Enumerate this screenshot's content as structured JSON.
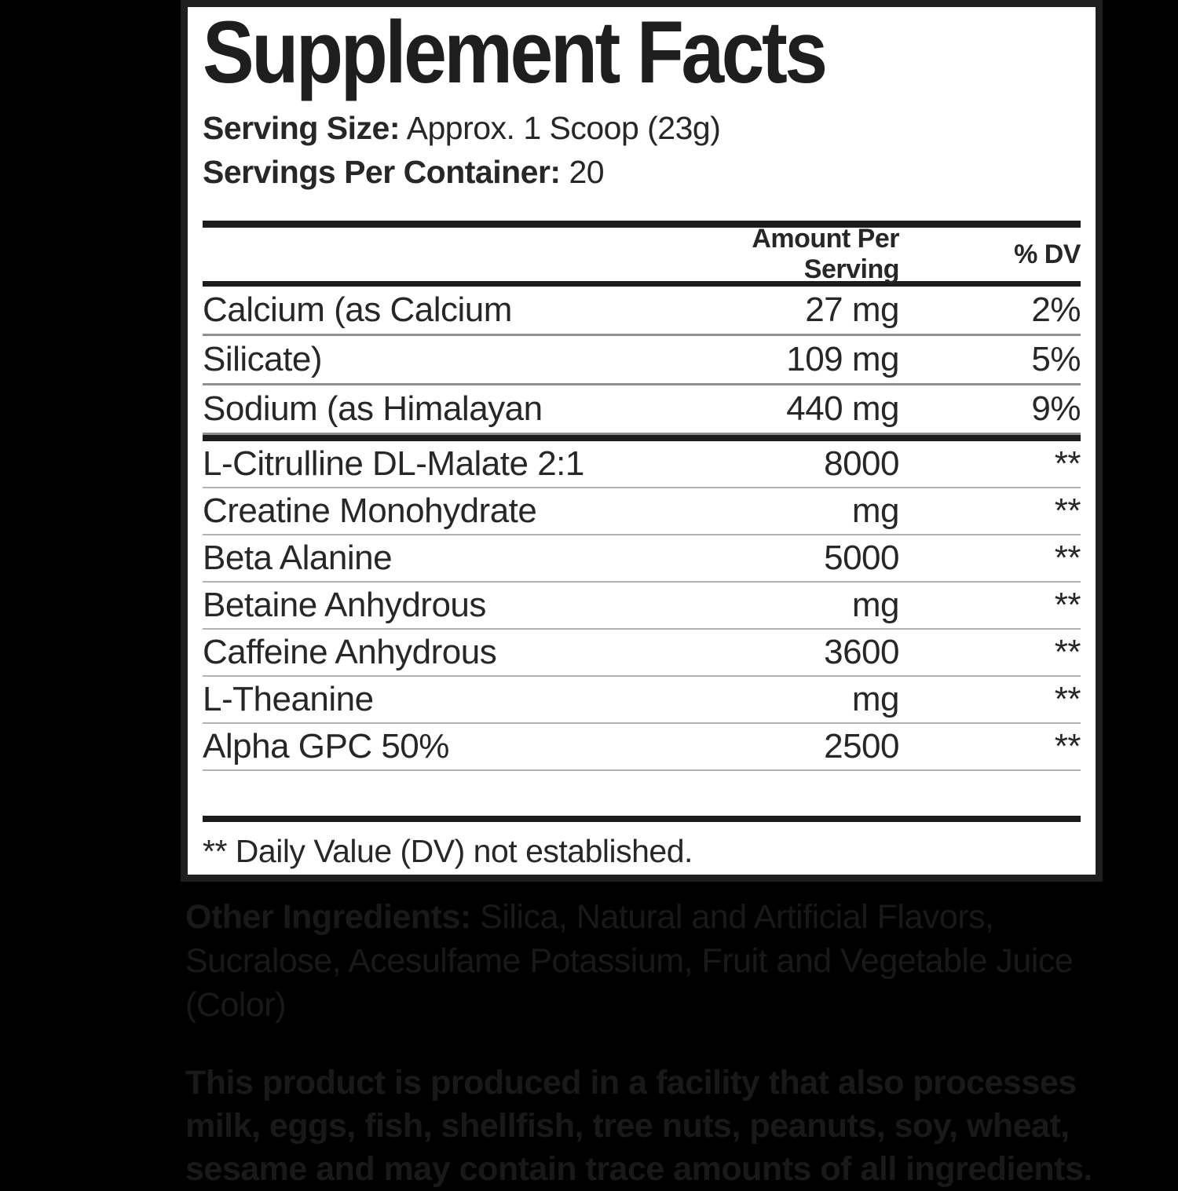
{
  "panel": {
    "title": "Supplement Facts",
    "serving_size_label": "Serving Size:",
    "serving_size_value": "Approx. 1 Scoop (23g)",
    "servings_per_container_label": "Servings Per Container:",
    "servings_per_container_value": "20",
    "columns": {
      "amount": "Amount Per Serving",
      "dv": "% DV"
    },
    "minerals": [
      {
        "name": "Calcium (as Calcium",
        "amount": "27 mg",
        "dv": "2%"
      },
      {
        "name": "Silicate)",
        "amount": "109 mg",
        "dv": "5%"
      },
      {
        "name": "Sodium (as Himalayan",
        "amount": "440 mg",
        "dv": "9%"
      }
    ],
    "actives": [
      {
        "name": "L-Citrulline DL-Malate 2:1",
        "amount": "8000",
        "dv": "**"
      },
      {
        "name": "Creatine Monohydrate",
        "amount": "mg",
        "dv": "**"
      },
      {
        "name": "Beta Alanine",
        "amount": "5000",
        "dv": "**"
      },
      {
        "name": "Betaine Anhydrous",
        "amount": "mg",
        "dv": "**"
      },
      {
        "name": "Caffeine Anhydrous",
        "amount": "3600",
        "dv": "**"
      },
      {
        "name": "L-Theanine",
        "amount": "mg",
        "dv": "**"
      },
      {
        "name": "Alpha GPC 50%",
        "amount": "2500",
        "dv": "**"
      }
    ],
    "footnote": "** Daily Value (DV) not established."
  },
  "below": {
    "other_ingredients_label": "Other Ingredients:",
    "other_ingredients_text": "Silica, Natural and Artificial Flavors, Sucralose, Acesulfame Potassium, Fruit and Vegetable Juice (Color)",
    "allergen_text": "This product is produced in a facility that also processes milk, eggs, fish, shellfish, tree nuts, peanuts, soy, wheat, sesame and may contain trace amounts of all ingredients."
  },
  "colors": {
    "background": "#000000",
    "panel_background": "#ffffff",
    "panel_border": "#1f1f1f",
    "panel_text": "#272727",
    "thick_rule": "#1c1c1c",
    "thin_rule": "#8f8f8f",
    "light_rule": "#b3b3b3",
    "below_text": "#191919"
  }
}
